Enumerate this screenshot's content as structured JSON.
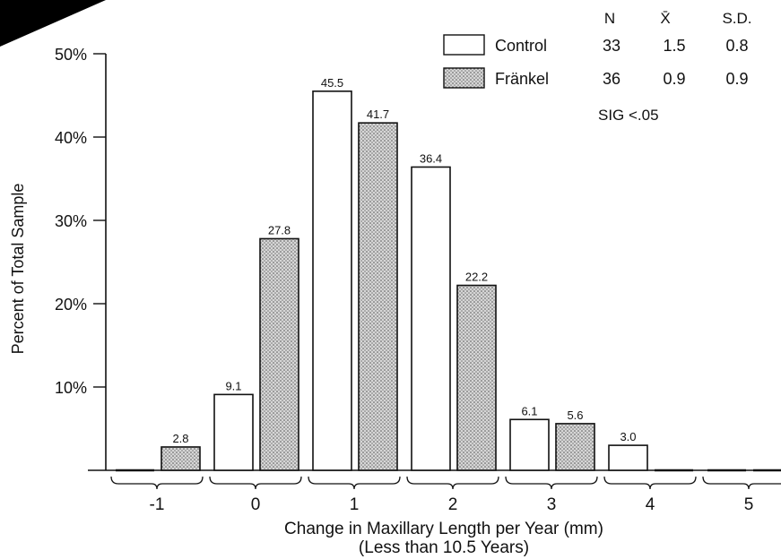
{
  "chart_data": {
    "type": "bar",
    "categories": [
      "-1",
      "0",
      "1",
      "2",
      "3",
      "4",
      "5"
    ],
    "series": [
      {
        "name": "Control",
        "values": [
          0,
          9.1,
          45.5,
          36.4,
          6.1,
          3.0,
          0
        ],
        "pattern": "open"
      },
      {
        "name": "Fränkel",
        "values": [
          2.8,
          27.8,
          41.7,
          22.2,
          5.6,
          0,
          0
        ],
        "pattern": "stippled"
      }
    ],
    "data_labels": [
      [
        null,
        "9.1",
        "45.5",
        "36.4",
        "6.1",
        "3.0",
        null
      ],
      [
        "2.8",
        "27.8",
        "41.7",
        "22.2",
        "5.6",
        null,
        null
      ]
    ],
    "ylim": [
      0,
      50
    ],
    "yticks": [
      "10%",
      "20%",
      "30%",
      "40%",
      "50%"
    ],
    "ylabel": "Percent of Total Sample",
    "xlabel": "Change in Maxillary Length per Year (mm)",
    "xlabel2": "(Less than 10.5 Years)",
    "legend": {
      "placement": "top-right",
      "headers": [
        "N",
        "X̄",
        "S.D."
      ],
      "rows": [
        {
          "label": "Control",
          "n": "33",
          "mean": "1.5",
          "sd": "0.8"
        },
        {
          "label": "Fränkel",
          "n": "36",
          "mean": "0.9",
          "sd": "0.9"
        }
      ],
      "note": "SIG <.05"
    },
    "colors": {
      "ink": "#111111",
      "open_fill": "#ffffff",
      "stipple_fill": "#bdbdbd"
    }
  }
}
